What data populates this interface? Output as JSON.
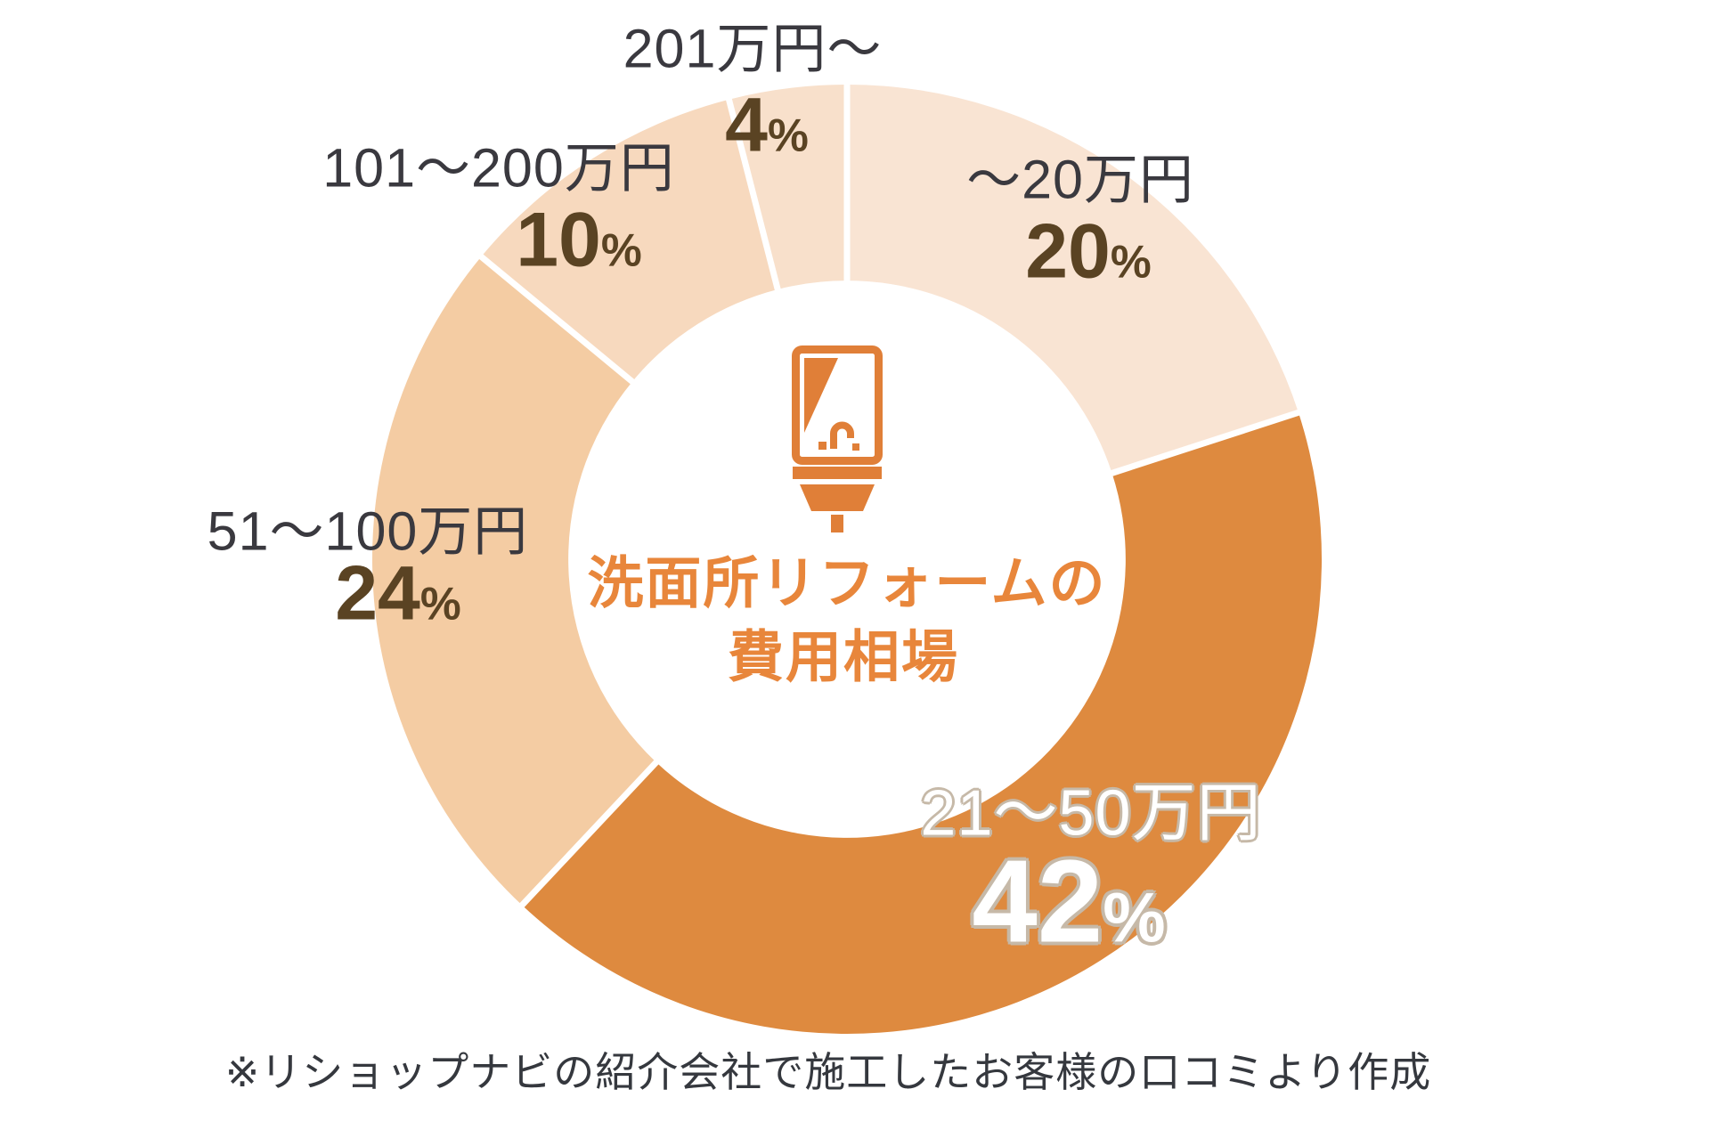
{
  "chart": {
    "center": {
      "icon": "washbasin-icon",
      "title_line1": "洗面所リフォームの",
      "title_line2": "費用相場",
      "title_color": "#E8863B",
      "icon_color": "#E07F38"
    },
    "note": "※リショップナビの紹介会社で施工したお客様の口コミより作成"
  },
  "chart_data": {
    "type": "pie",
    "donut": true,
    "start_angle_deg": 0,
    "direction": "clockwise",
    "title": "洗面所リフォームの費用相場",
    "inner_radius_ratio": 0.587,
    "divider_color": "#FFFFFF",
    "label_color": "#3A393F",
    "pct_color": "#5A4323",
    "slices": [
      {
        "label": "〜20万円",
        "value": 20,
        "pct": "20",
        "unit": "%",
        "color": "#F9E4D3"
      },
      {
        "label": "21〜50万円",
        "value": 42,
        "pct": "42",
        "unit": "%",
        "color": "#DE8A3F"
      },
      {
        "label": "51〜100万円",
        "value": 24,
        "pct": "24",
        "unit": "%",
        "color": "#F4CCA3"
      },
      {
        "label": "101〜200万円",
        "value": 10,
        "pct": "10",
        "unit": "%",
        "color": "#F7D9BE"
      },
      {
        "label": "201万円〜",
        "value": 4,
        "pct": "4",
        "unit": "%",
        "color": "#F8E0CB"
      }
    ]
  }
}
